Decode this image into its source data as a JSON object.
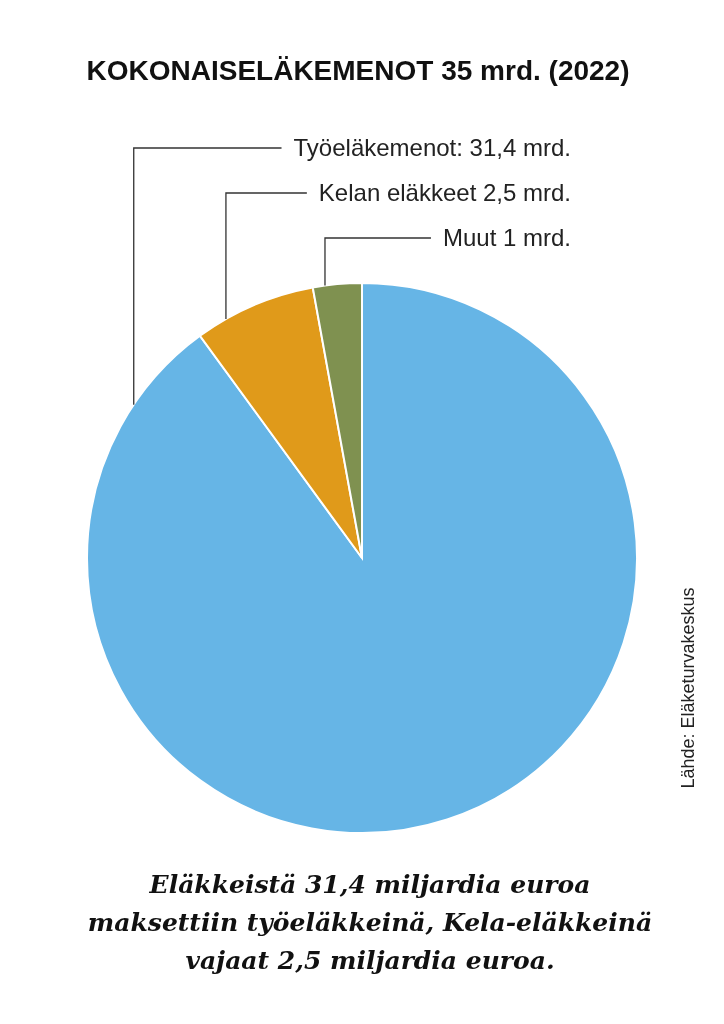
{
  "chart_data": {
    "type": "pie",
    "title": "KOKONAISELÄKEMENOT 35 mrd. (2022)",
    "categories": [
      "Työeläkemenot: 31,4 mrd.",
      "Kelan eläkkeet 2,5 mrd.",
      "Muut 1 mrd."
    ],
    "values": [
      31.4,
      2.5,
      1
    ],
    "colors": [
      "#66b5e6",
      "#e09a1a",
      "#7f9150"
    ],
    "annotations": [
      "Eläkkeistä 31,4 miljardia euroa maksettiin työeläkkeinä, Kela-eläkkeinä vajaat 2,5 miljardia euroa.",
      "Lähde: Eläketurvakeskus"
    ]
  }
}
